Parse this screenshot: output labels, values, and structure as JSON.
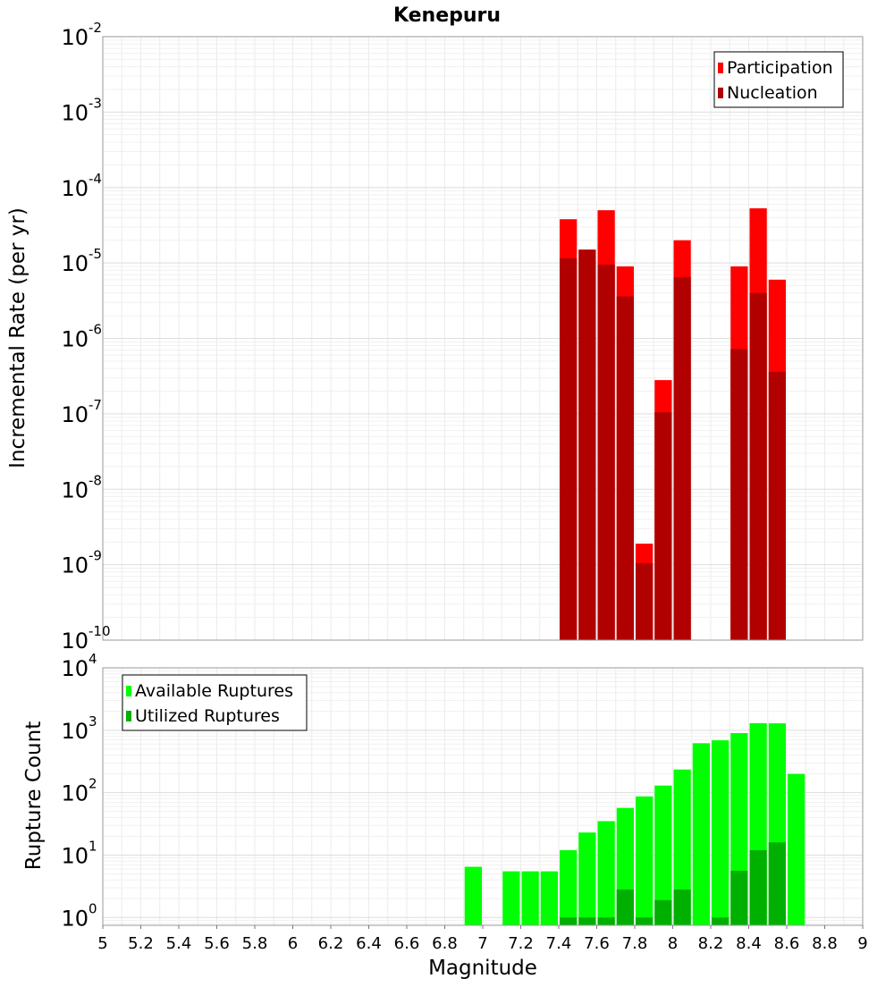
{
  "chart_data": [
    {
      "type": "bar",
      "title": "Kenepuru",
      "xlabel": "",
      "ylabel": "Incremental Rate (per yr)",
      "yscale": "log",
      "ylim": [
        1e-10,
        0.01
      ],
      "xlim": [
        5,
        9
      ],
      "bar_width": 0.1,
      "grid": true,
      "legend_position": "top-right",
      "y_ticks": [
        {
          "value": 1e-10,
          "base": "10",
          "exp": "-10"
        },
        {
          "value": 1e-09,
          "base": "10",
          "exp": "-9"
        },
        {
          "value": 1e-08,
          "base": "10",
          "exp": "-8"
        },
        {
          "value": 1e-07,
          "base": "10",
          "exp": "-7"
        },
        {
          "value": 1e-06,
          "base": "10",
          "exp": "-6"
        },
        {
          "value": 1e-05,
          "base": "10",
          "exp": "-5"
        },
        {
          "value": 0.0001,
          "base": "10",
          "exp": "-4"
        },
        {
          "value": 0.001,
          "base": "10",
          "exp": "-3"
        },
        {
          "value": 0.01,
          "base": "10",
          "exp": "-2"
        }
      ],
      "series": [
        {
          "name": "Participation",
          "color": "#ff0000",
          "x": [
            7.45,
            7.55,
            7.65,
            7.75,
            7.85,
            7.95,
            8.05,
            8.35,
            8.45,
            8.55
          ],
          "values": [
            3.8e-05,
            1.5e-05,
            5e-05,
            9e-06,
            1.9e-09,
            2.8e-07,
            2e-05,
            9e-06,
            5.3e-05,
            6e-06
          ]
        },
        {
          "name": "Nucleation",
          "color": "#b00000",
          "x": [
            7.45,
            7.55,
            7.65,
            7.75,
            7.85,
            7.95,
            8.05,
            8.35,
            8.45,
            8.55
          ],
          "values": [
            1.15e-05,
            1.5e-05,
            9.5e-06,
            3.6e-06,
            1.05e-09,
            1.05e-07,
            6.5e-06,
            7.2e-07,
            4e-06,
            3.6e-07
          ]
        }
      ]
    },
    {
      "type": "bar",
      "title": "",
      "xlabel": "Magnitude",
      "ylabel": "Rupture Count",
      "yscale": "log",
      "ylim": [
        0.75,
        10000
      ],
      "xlim": [
        5,
        9
      ],
      "bar_width": 0.1,
      "grid": true,
      "legend_position": "top-left",
      "x_ticks": [
        "5",
        "5.2",
        "5.4",
        "5.6",
        "5.8",
        "6",
        "6.2",
        "6.4",
        "6.6",
        "6.8",
        "7",
        "7.2",
        "7.4",
        "7.6",
        "7.8",
        "8",
        "8.2",
        "8.4",
        "8.6",
        "8.8",
        "9"
      ],
      "y_ticks": [
        {
          "value": 1,
          "base": "10",
          "exp": "0"
        },
        {
          "value": 10,
          "base": "10",
          "exp": "1"
        },
        {
          "value": 100,
          "base": "10",
          "exp": "2"
        },
        {
          "value": 1000,
          "base": "10",
          "exp": "3"
        },
        {
          "value": 10000,
          "base": "10",
          "exp": "4"
        }
      ],
      "series": [
        {
          "name": "Available Ruptures",
          "color": "#00ff00",
          "x": [
            6.95,
            7.15,
            7.25,
            7.35,
            7.45,
            7.55,
            7.65,
            7.75,
            7.85,
            7.95,
            8.05,
            8.15,
            8.25,
            8.35,
            8.45,
            8.55,
            8.65
          ],
          "values": [
            6.5,
            5.5,
            5.5,
            5.5,
            12,
            23,
            35,
            57,
            87,
            130,
            235,
            620,
            690,
            900,
            1300,
            1290,
            200
          ]
        },
        {
          "name": "Utilized Ruptures",
          "color": "#00b000",
          "x": [
            7.45,
            7.55,
            7.65,
            7.75,
            7.85,
            7.95,
            8.05,
            8.25,
            8.35,
            8.45,
            8.55
          ],
          "values": [
            1,
            1,
            1,
            2.8,
            1,
            1.9,
            2.8,
            1,
            5.6,
            12,
            16
          ]
        }
      ]
    }
  ]
}
